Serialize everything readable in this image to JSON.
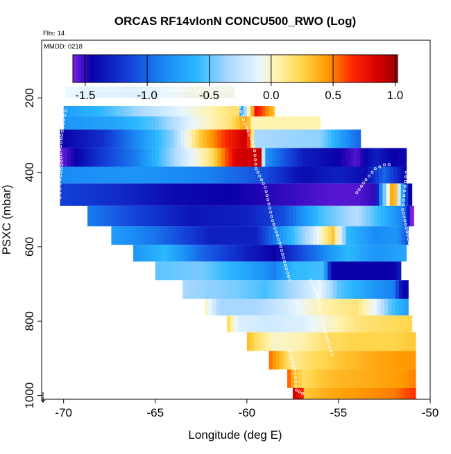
{
  "chart_data": {
    "type": "heatmap",
    "title": "ORCAS RF14vlonN CONCU500_RWO (Log)",
    "flights_note": "Flts: 14",
    "date_note": "MMDD: 0218",
    "xlabel": "Longitude (deg E)",
    "ylabel": "PSXC (mbar)",
    "xlim": [
      -71.2,
      -50.0
    ],
    "ylim": [
      1010,
      45
    ],
    "y_reversed": true,
    "x_ticks": [
      -70,
      -65,
      -60,
      -55,
      -50
    ],
    "x_tick_labels": [
      "-70",
      "-65",
      "-60",
      "-55",
      "-50"
    ],
    "y_ticks": [
      200,
      400,
      600,
      800,
      1000
    ],
    "y_tick_labels": [
      "200",
      "400",
      "600",
      "800",
      "1000"
    ],
    "colorbar": {
      "range": [
        -1.6,
        1.02
      ],
      "ticks": [
        -1.5,
        -1.0,
        -0.5,
        0.0,
        0.5,
        1.0
      ],
      "tick_labels": [
        "-1.5",
        "-1.0",
        "-0.5",
        "0.0",
        "0.5",
        "1.0"
      ],
      "stops": [
        {
          "value": -1.6,
          "color": "#7a1fe6"
        },
        {
          "value": -1.45,
          "color": "#0a00a8"
        },
        {
          "value": -1.15,
          "color": "#1340d8"
        },
        {
          "value": -0.85,
          "color": "#1a8cf5"
        },
        {
          "value": -0.6,
          "color": "#2cb8ff"
        },
        {
          "value": -0.35,
          "color": "#a9d8ff"
        },
        {
          "value": -0.1,
          "color": "#e8f6ff"
        },
        {
          "value": 0.05,
          "color": "#fff3b0"
        },
        {
          "value": 0.25,
          "color": "#ffd54a"
        },
        {
          "value": 0.45,
          "color": "#ff9a00"
        },
        {
          "value": 0.65,
          "color": "#ff2a00"
        },
        {
          "value": 0.85,
          "color": "#d80000"
        },
        {
          "value": 1.02,
          "color": "#9a0000"
        }
      ]
    },
    "arrow_symbol": "↓",
    "layers": [
      {
        "p_top": 170,
        "p_bot": 200,
        "lon_start": -69.9,
        "lon_end": -60.7,
        "knots": [
          [
            -69.9,
            -0.1
          ],
          [
            -66,
            -0.15
          ],
          [
            -63,
            -0.05
          ],
          [
            -60.7,
            -0.05
          ]
        ]
      },
      {
        "p_top": 222,
        "p_bot": 250,
        "lon_start": -70.0,
        "lon_end": -58.5,
        "knots": [
          [
            -70,
            -0.75
          ],
          [
            -68,
            -0.6
          ],
          [
            -65,
            -0.25
          ],
          [
            -62,
            0.05
          ],
          [
            -60.4,
            0.2
          ],
          [
            -60.3,
            -0.7
          ],
          [
            -59.5,
            0.75
          ],
          [
            -58.5,
            0.3
          ]
        ]
      },
      {
        "p_top": 250,
        "p_bot": 285,
        "lon_start": -70.0,
        "lon_end": -56.0,
        "knots": [
          [
            -70,
            -0.8
          ],
          [
            -67,
            -0.7
          ],
          [
            -65,
            -0.5
          ],
          [
            -63,
            -0.1
          ],
          [
            -61,
            0.15
          ],
          [
            -60,
            0.45
          ],
          [
            -59.7,
            0.05
          ],
          [
            -58,
            0.05
          ],
          [
            -56,
            0.05
          ]
        ]
      },
      {
        "p_top": 285,
        "p_bot": 335,
        "lon_start": -70.2,
        "lon_end": -53.8,
        "knots": [
          [
            -70.2,
            -1.45
          ],
          [
            -68,
            -1.25
          ],
          [
            -66,
            -0.85
          ],
          [
            -64,
            -0.4
          ],
          [
            -62.5,
            0.3
          ],
          [
            -61,
            0.7
          ],
          [
            -60,
            0.9
          ],
          [
            -59.5,
            -0.35
          ],
          [
            -56,
            -0.4
          ],
          [
            -55,
            -0.7
          ],
          [
            -54.5,
            -0.85
          ],
          [
            -53.8,
            -1.0
          ]
        ]
      },
      {
        "p_top": 335,
        "p_bot": 385,
        "lon_start": -70.2,
        "lon_end": -51.3,
        "knots": [
          [
            -70.2,
            -1.6
          ],
          [
            -68,
            -1.2
          ],
          [
            -66,
            -0.9
          ],
          [
            -64,
            -0.35
          ],
          [
            -62,
            0.15
          ],
          [
            -60.6,
            0.85
          ],
          [
            -59.3,
            0.9
          ],
          [
            -59,
            -0.8
          ],
          [
            -57,
            -1.3
          ],
          [
            -55,
            -1.45
          ],
          [
            -54,
            -1.55
          ],
          [
            -53,
            -1.3
          ],
          [
            -52,
            -1.45
          ],
          [
            -51.3,
            -1.4
          ]
        ]
      },
      {
        "p_top": 385,
        "p_bot": 430,
        "lon_start": -70.2,
        "lon_end": -51.3,
        "knots": [
          [
            -70.2,
            -0.85
          ],
          [
            -66,
            -0.8
          ],
          [
            -62,
            -0.9
          ],
          [
            -59,
            -1.1
          ],
          [
            -57,
            -1.4
          ],
          [
            -55,
            -1.3
          ],
          [
            -53.5,
            -1.4
          ],
          [
            -52.5,
            -1.0
          ],
          [
            -51.3,
            -1.45
          ]
        ]
      },
      {
        "p_top": 430,
        "p_bot": 490,
        "lon_start": -70.2,
        "lon_end": -51.0,
        "knots": [
          [
            -70.2,
            -1.15
          ],
          [
            -67,
            -1.25
          ],
          [
            -64,
            -1.4
          ],
          [
            -61,
            -1.45
          ],
          [
            -58,
            -1.5
          ],
          [
            -55.5,
            -1.55
          ],
          [
            -54,
            -1.55
          ],
          [
            -53,
            -1.5
          ],
          [
            -52,
            0.6
          ],
          [
            -51.4,
            -1.0
          ],
          [
            -51,
            -1.6
          ]
        ]
      },
      {
        "p_top": 490,
        "p_bot": 545,
        "lon_start": -68.7,
        "lon_end": -50.9,
        "knots": [
          [
            -68.7,
            -0.9
          ],
          [
            -66,
            -1.15
          ],
          [
            -63,
            -1.35
          ],
          [
            -60,
            -1.3
          ],
          [
            -58,
            -1.1
          ],
          [
            -56,
            -0.55
          ],
          [
            -54,
            -0.3
          ],
          [
            -52.5,
            -0.65
          ],
          [
            -51.5,
            -0.9
          ],
          [
            -51,
            -1.6
          ]
        ]
      },
      {
        "p_top": 545,
        "p_bot": 595,
        "lon_start": -67.4,
        "lon_end": -51.2,
        "knots": [
          [
            -67.4,
            -0.75
          ],
          [
            -65,
            -0.95
          ],
          [
            -62,
            -1.3
          ],
          [
            -59.5,
            -1.3
          ],
          [
            -58,
            -0.75
          ],
          [
            -56.5,
            -0.25
          ],
          [
            -55.3,
            0.3
          ],
          [
            -54.5,
            -0.6
          ],
          [
            -53,
            -0.85
          ],
          [
            -51.8,
            -0.8
          ],
          [
            -51.2,
            -1.1
          ]
        ]
      },
      {
        "p_top": 595,
        "p_bot": 640,
        "lon_start": -66.2,
        "lon_end": -51.3,
        "knots": [
          [
            -66.2,
            -0.8
          ],
          [
            -64.5,
            -0.6
          ],
          [
            -62.5,
            -1.0
          ],
          [
            -60,
            -1.3
          ],
          [
            -58.5,
            -1.45
          ],
          [
            -57.5,
            -1.2
          ],
          [
            -56,
            -0.9
          ],
          [
            -54.5,
            -0.6
          ],
          [
            -53,
            -0.8
          ],
          [
            -52,
            -0.75
          ],
          [
            -51.3,
            -0.7
          ]
        ]
      },
      {
        "p_top": 640,
        "p_bot": 690,
        "lon_start": -65.0,
        "lon_end": -51.6,
        "knots": [
          [
            -65,
            -0.5
          ],
          [
            -62.5,
            -0.45
          ],
          [
            -60,
            -0.7
          ],
          [
            -58.5,
            -0.9
          ],
          [
            -57.5,
            -0.6
          ],
          [
            -55.8,
            -0.55
          ],
          [
            -55.4,
            -1.45
          ],
          [
            -52,
            -1.45
          ],
          [
            -51.6,
            -1.3
          ]
        ]
      },
      {
        "p_top": 690,
        "p_bot": 740,
        "lon_start": -63.5,
        "lon_end": -51.2,
        "knots": [
          [
            -63.5,
            -0.35
          ],
          [
            -60.5,
            -0.45
          ],
          [
            -59,
            -0.55
          ],
          [
            -57.5,
            -0.35
          ],
          [
            -56,
            -0.1
          ],
          [
            -55,
            -0.5
          ],
          [
            -53,
            -0.8
          ],
          [
            -52,
            -0.9
          ],
          [
            -51.5,
            -1.45
          ],
          [
            -51.2,
            -1.4
          ]
        ]
      },
      {
        "p_top": 740,
        "p_bot": 785,
        "lon_start": -62.3,
        "lon_end": -51.2,
        "knots": [
          [
            -62.3,
            0.05
          ],
          [
            -61.5,
            -0.35
          ],
          [
            -59.5,
            -0.35
          ],
          [
            -58,
            -0.2
          ],
          [
            -56,
            0.05
          ],
          [
            -54,
            0.15
          ],
          [
            -53,
            -0.1
          ],
          [
            -52.2,
            -0.5
          ],
          [
            -51.2,
            -0.75
          ]
        ]
      },
      {
        "p_top": 785,
        "p_bot": 830,
        "lon_start": -61.1,
        "lon_end": -51.0,
        "knots": [
          [
            -61.1,
            0.25
          ],
          [
            -60.5,
            -0.15
          ],
          [
            -59,
            -0.2
          ],
          [
            -57,
            -0.15
          ],
          [
            -55.5,
            0.0
          ],
          [
            -54,
            0.15
          ],
          [
            -52.5,
            0.2
          ],
          [
            -51,
            0.25
          ]
        ]
      },
      {
        "p_top": 830,
        "p_bot": 880,
        "lon_start": -60.0,
        "lon_end": -50.8,
        "knots": [
          [
            -60,
            0.35
          ],
          [
            -59.5,
            0.2
          ],
          [
            -58.5,
            0.0
          ],
          [
            -57,
            0.05
          ],
          [
            -55.5,
            0.2
          ],
          [
            -54,
            0.25
          ],
          [
            -52,
            0.25
          ],
          [
            -50.8,
            0.3
          ]
        ]
      },
      {
        "p_top": 880,
        "p_bot": 930,
        "lon_start": -58.8,
        "lon_end": -50.8,
        "knots": [
          [
            -58.8,
            0.55
          ],
          [
            -58.2,
            0.35
          ],
          [
            -57.5,
            0.1
          ],
          [
            -56.5,
            0.2
          ],
          [
            -55,
            0.3
          ],
          [
            -53,
            0.4
          ],
          [
            -51.5,
            0.45
          ],
          [
            -50.8,
            0.45
          ]
        ]
      },
      {
        "p_top": 930,
        "p_bot": 980,
        "lon_start": -57.8,
        "lon_end": -50.8,
        "knots": [
          [
            -57.8,
            0.6
          ],
          [
            -57.4,
            0.35
          ],
          [
            -56.9,
            0.2
          ],
          [
            -56,
            0.3
          ],
          [
            -55,
            0.35
          ],
          [
            -53,
            0.4
          ],
          [
            -51.5,
            0.45
          ],
          [
            -50.8,
            0.5
          ]
        ]
      },
      {
        "p_top": 980,
        "p_bot": 1010,
        "lon_start": -57.5,
        "lon_end": -50.8,
        "knots": [
          [
            -57.5,
            0.9
          ],
          [
            -57,
            0.7
          ],
          [
            -56.8,
            0.3
          ],
          [
            -55.5,
            0.4
          ],
          [
            -54,
            0.45
          ],
          [
            -52,
            0.5
          ],
          [
            -50.8,
            0.65
          ]
        ]
      }
    ],
    "tracks": [
      {
        "points": [
          [
            -69.9,
            180
          ],
          [
            -60.8,
            180
          ]
        ]
      },
      {
        "points": [
          [
            -69.9,
            235
          ],
          [
            -70.0,
            260
          ],
          [
            -70.1,
            300
          ],
          [
            -70.2,
            340
          ],
          [
            -70.1,
            380
          ],
          [
            -70.2,
            420
          ],
          [
            -70.2,
            480
          ]
        ]
      },
      {
        "points": [
          [
            -60.4,
            225
          ],
          [
            -60.1,
            270
          ],
          [
            -59.6,
            330
          ],
          [
            -59.5,
            390
          ],
          [
            -59.0,
            440
          ],
          [
            -58.6,
            530
          ],
          [
            -58.2,
            590
          ],
          [
            -57.9,
            650
          ],
          [
            -57.6,
            700
          ]
        ]
      },
      {
        "points": [
          [
            -56.5,
            690
          ],
          [
            -56.1,
            740
          ],
          [
            -55.9,
            800
          ],
          [
            -55.6,
            850
          ],
          [
            -55.3,
            900
          ]
        ]
      },
      {
        "points": [
          [
            -57.7,
            880
          ],
          [
            -57.4,
            930
          ],
          [
            -57.3,
            985
          ],
          [
            -56.8,
            1000
          ]
        ]
      },
      {
        "points": [
          [
            -54.0,
            455
          ],
          [
            -53.5,
            420
          ],
          [
            -53.0,
            390
          ],
          [
            -52.5,
            380
          ],
          [
            -52.0,
            378
          ]
        ]
      },
      {
        "points": [
          [
            -51.3,
            400
          ],
          [
            -51.4,
            450
          ],
          [
            -51.5,
            500
          ],
          [
            -51.3,
            550
          ],
          [
            -51.1,
            600
          ],
          [
            -51.1,
            650
          ],
          [
            -51.0,
            700
          ]
        ]
      }
    ]
  }
}
